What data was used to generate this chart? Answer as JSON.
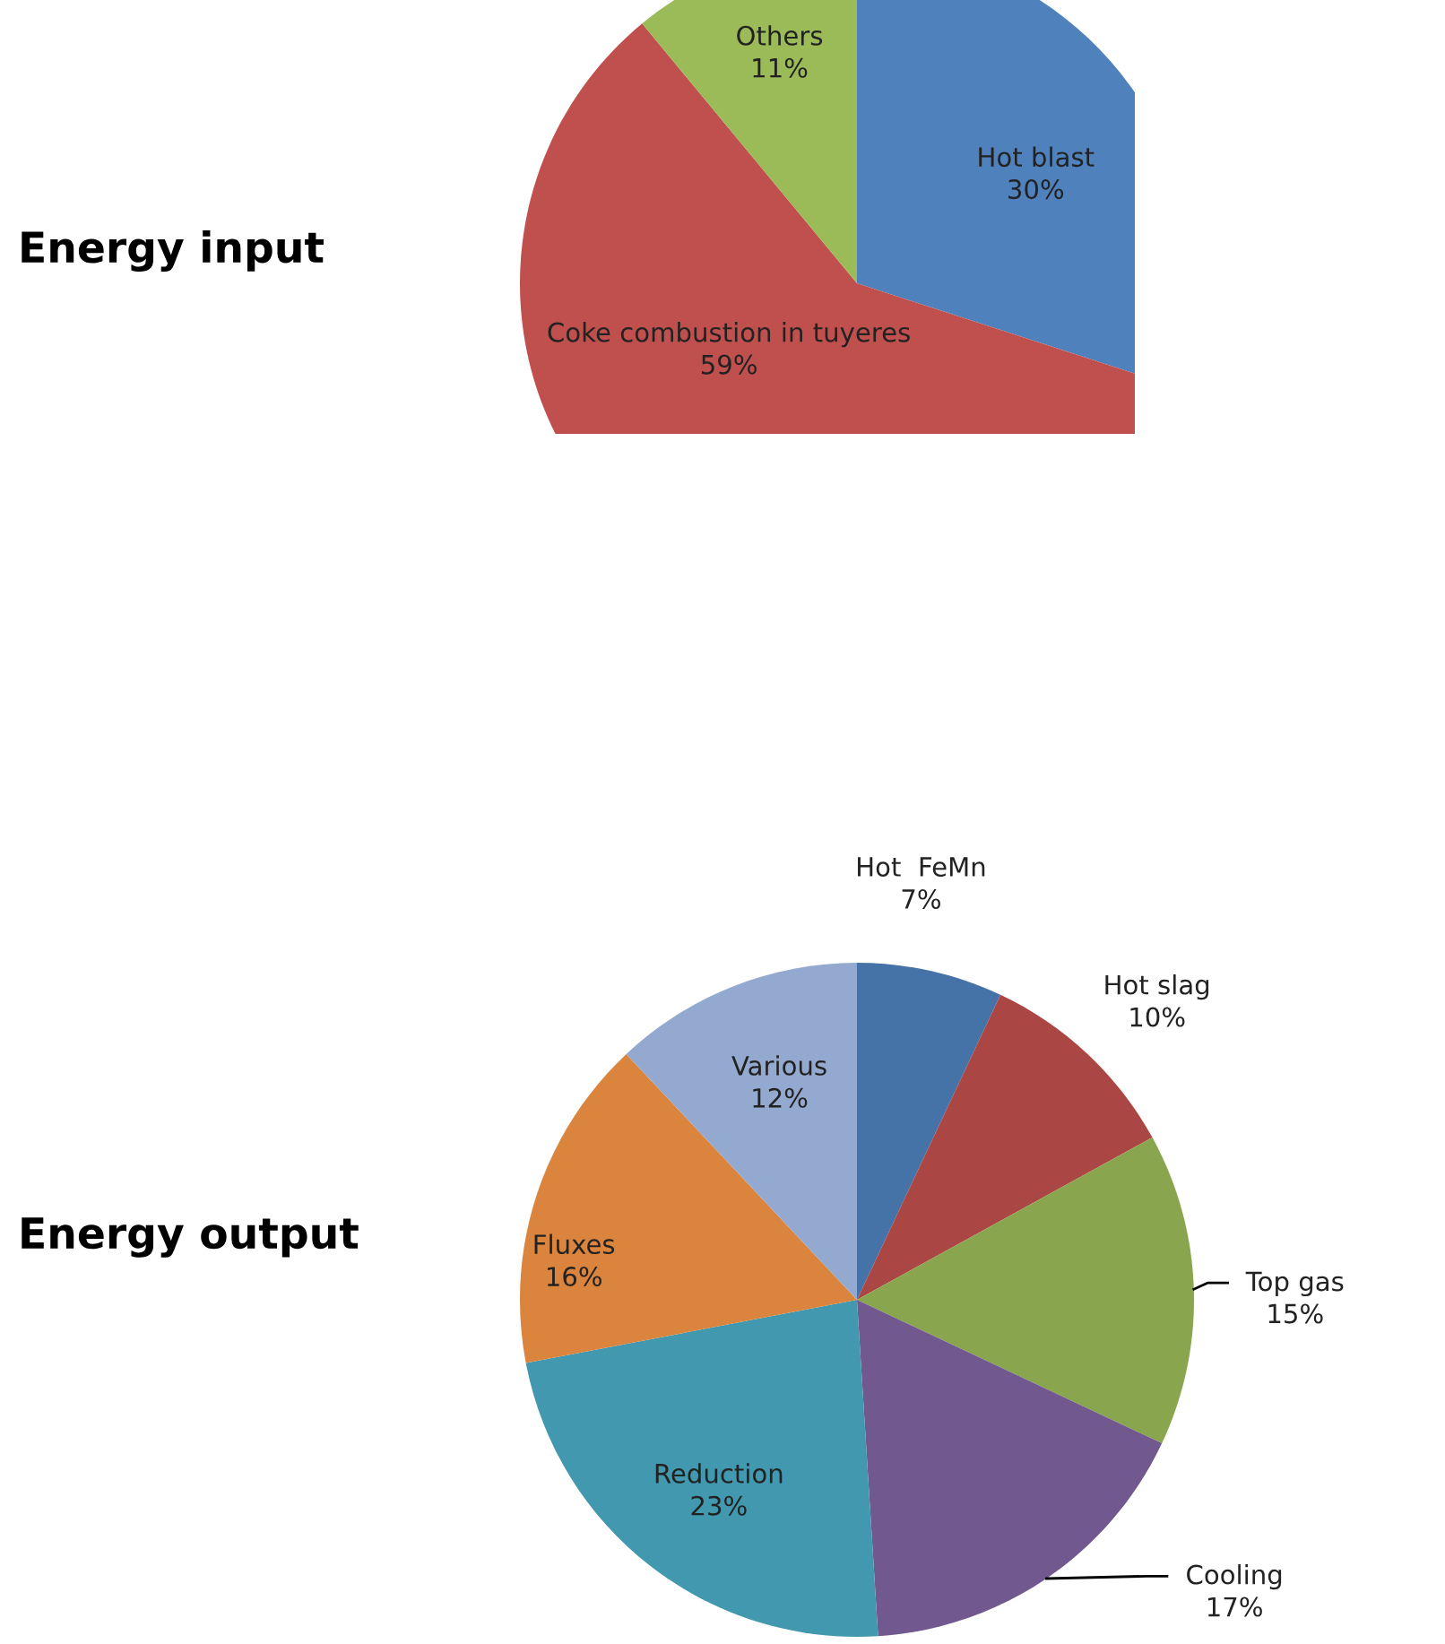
{
  "chart_data": [
    {
      "type": "pie",
      "title": "Energy input",
      "categories": [
        "Hot blast",
        "Coke combustion in tuyeres",
        "Others"
      ],
      "values": [
        30,
        59,
        11
      ],
      "value_labels": [
        "30%",
        "59%",
        "11%"
      ],
      "colors": [
        "#4f81bd",
        "#c0504d",
        "#9bbb59"
      ]
    },
    {
      "type": "pie",
      "title": "Energy output",
      "categories": [
        "Hot  FeMn",
        "Hot slag",
        "Top gas",
        "Cooling",
        "Reduction",
        "Fluxes",
        "Various"
      ],
      "values": [
        7,
        10,
        15,
        17,
        23,
        16,
        12
      ],
      "value_labels": [
        "7%",
        "10%",
        "15%",
        "17%",
        "23%",
        "16%",
        "12%"
      ],
      "colors": [
        "#4572a7",
        "#aa4643",
        "#89a54e",
        "#71588f",
        "#4198af",
        "#db843d",
        "#93a9cf"
      ]
    }
  ]
}
